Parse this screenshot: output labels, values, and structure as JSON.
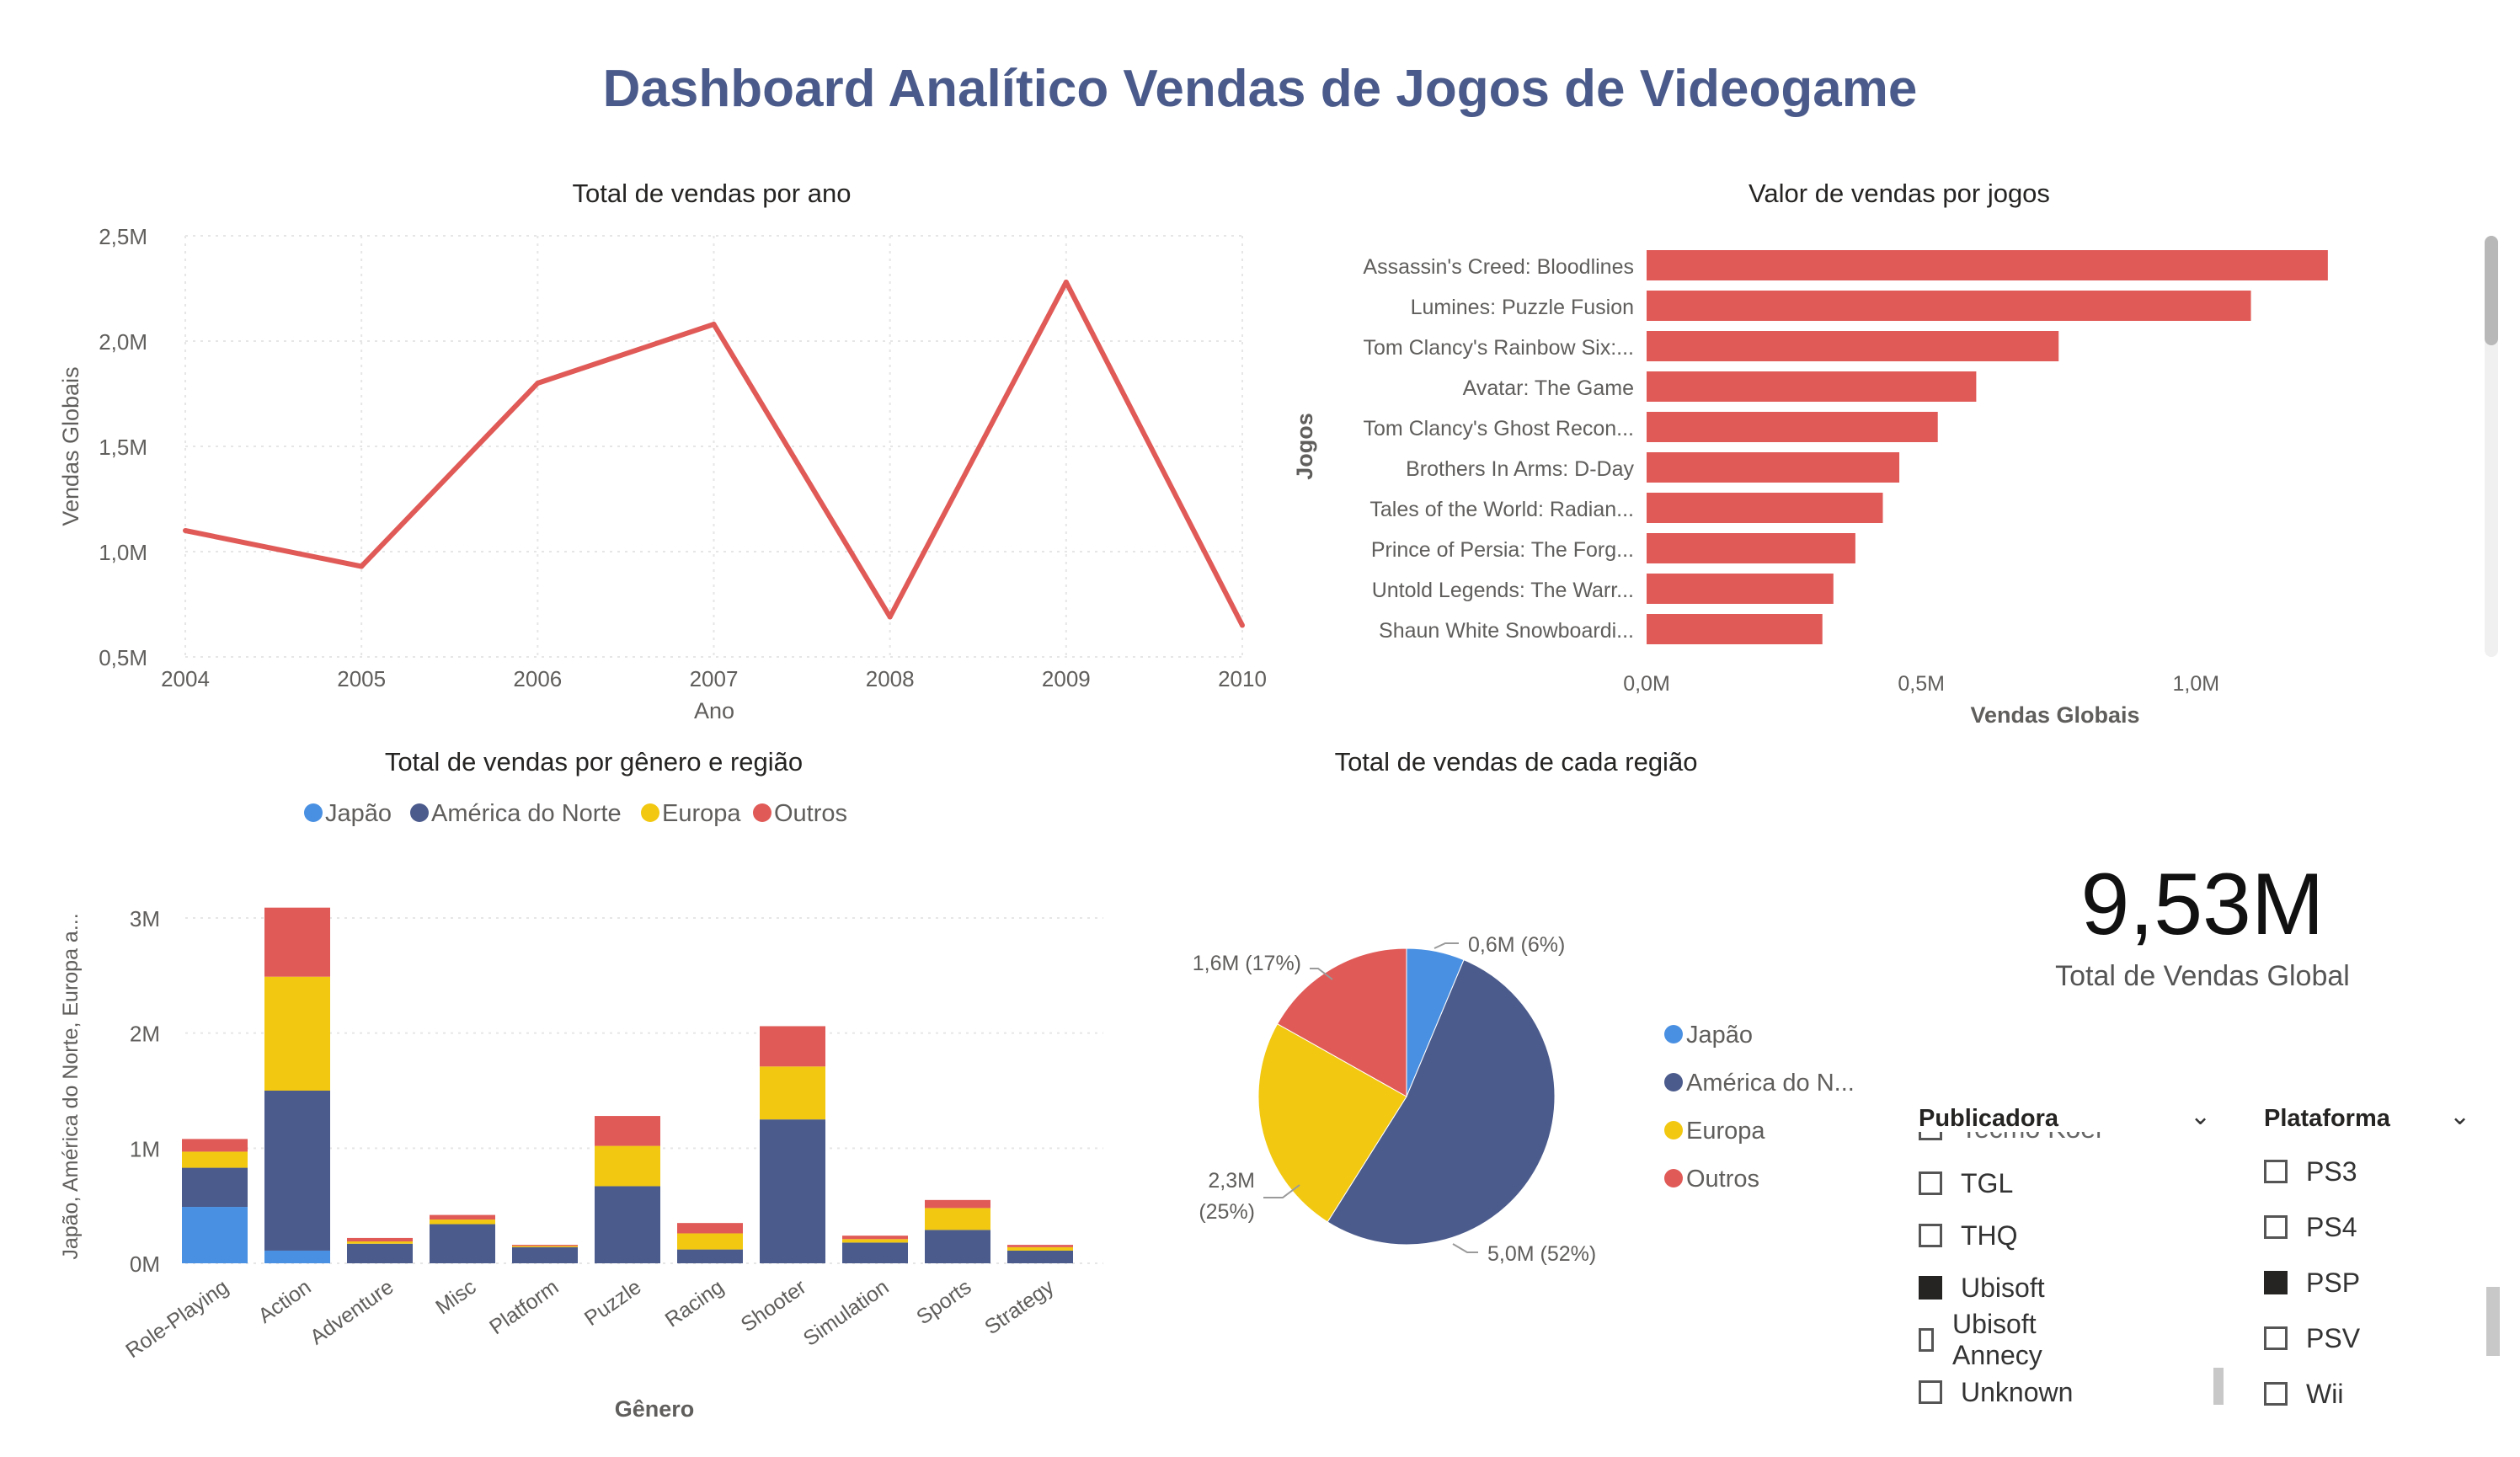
{
  "dashboard": {
    "title": "Dashboard Analítico Vendas de Jogos de Videogame"
  },
  "colors": {
    "red": "#e05a57",
    "navy": "#4b5b8c",
    "blue": "#4a90e2",
    "yellow": "#f2c811"
  },
  "charts": {
    "line": {
      "title": "Total de vendas por ano",
      "xlabel": "Ano",
      "ylabel": "Vendas Globais"
    },
    "bar": {
      "title": "Valor de vendas por jogos",
      "xlabel": "Vendas Globais",
      "ylabel": "Jogos"
    },
    "stacked": {
      "title": "Total de vendas por gênero e região",
      "xlabel": "Gênero",
      "ylabel": "Japão, América do Norte, Europa a..."
    },
    "pie": {
      "title": "Total de vendas de cada região"
    }
  },
  "chart_data": [
    {
      "type": "line",
      "title": "Total de vendas por ano",
      "xlabel": "Ano",
      "ylabel": "Vendas Globais",
      "x": [
        "2004",
        "2005",
        "2006",
        "2007",
        "2008",
        "2009",
        "2010"
      ],
      "values": [
        1.1,
        0.93,
        1.8,
        2.08,
        0.69,
        2.28,
        0.65
      ],
      "yticks": [
        "0,5M",
        "1,0M",
        "1,5M",
        "2,0M",
        "2,5M"
      ],
      "ylim": [
        0.5,
        2.5
      ],
      "color": "#e05a57"
    },
    {
      "type": "bar",
      "orientation": "horizontal",
      "title": "Valor de vendas por jogos",
      "xlabel": "Vendas Globais",
      "ylabel": "Jogos",
      "categories": [
        "Assassin's Creed: Bloodlines",
        "Lumines: Puzzle Fusion",
        "Tom Clancy's Rainbow Six:...",
        "Avatar: The Game",
        "Tom Clancy's Ghost Recon...",
        "Brothers In Arms: D-Day",
        "Tales of the World: Radian...",
        "Prince of Persia: The Forg...",
        "Untold Legends: The Warr...",
        "Shaun White Snowboardi..."
      ],
      "values": [
        1.24,
        1.1,
        0.75,
        0.6,
        0.53,
        0.46,
        0.43,
        0.38,
        0.34,
        0.32
      ],
      "xticks": [
        "0,0M",
        "0,5M",
        "1,0M"
      ],
      "xlim": [
        0,
        1.3
      ],
      "color": "#e05a57"
    },
    {
      "type": "bar",
      "stacked": true,
      "title": "Total de vendas por gênero e região",
      "xlabel": "Gênero",
      "ylabel": "Japão, América do Norte, Europa a...",
      "categories": [
        "Role-Playing",
        "Action",
        "Adventure",
        "Misc",
        "Platform",
        "Puzzle",
        "Racing",
        "Shooter",
        "Simulation",
        "Sports",
        "Strategy"
      ],
      "series": [
        {
          "name": "Japão",
          "color": "#4a90e2",
          "values": [
            0.49,
            0.11,
            0.0,
            0.0,
            0.0,
            0.0,
            0.0,
            0.0,
            0.0,
            0.0,
            0.0
          ]
        },
        {
          "name": "América do Norte",
          "color": "#4b5b8c",
          "values": [
            0.34,
            1.39,
            0.17,
            0.34,
            0.14,
            0.67,
            0.12,
            1.25,
            0.18,
            0.29,
            0.11
          ]
        },
        {
          "name": "Europa",
          "color": "#f2c811",
          "values": [
            0.14,
            0.99,
            0.02,
            0.04,
            0.01,
            0.35,
            0.14,
            0.46,
            0.03,
            0.19,
            0.03
          ]
        },
        {
          "name": "Outros",
          "color": "#e05a57",
          "values": [
            0.11,
            0.6,
            0.03,
            0.04,
            0.01,
            0.26,
            0.09,
            0.35,
            0.03,
            0.07,
            0.02
          ]
        }
      ],
      "yticks": [
        "0M",
        "1M",
        "2M",
        "3M"
      ],
      "ylim": [
        0,
        3.3
      ],
      "legend_position": "top"
    },
    {
      "type": "pie",
      "title": "Total de vendas de cada região",
      "slices": [
        {
          "name": "Japão",
          "value": 0.6,
          "label": "0,6M (6%)",
          "color": "#4a90e2"
        },
        {
          "name": "América do N...",
          "value": 5.0,
          "label": "5,0M (52%)",
          "color": "#4b5b8c"
        },
        {
          "name": "Europa",
          "value": 2.3,
          "label": "2,3M (25%)",
          "color": "#f2c811"
        },
        {
          "name": "Outros",
          "value": 1.6,
          "label": "1,6M (17%)",
          "color": "#e05a57"
        }
      ],
      "legend_position": "right"
    }
  ],
  "kpi": {
    "value": "9,53M",
    "label": "Total de Vendas Global"
  },
  "slicers": {
    "publisher": {
      "title": "Publicadora",
      "partial_item": "Tecmo Koei",
      "items": [
        {
          "label": "TGL",
          "checked": false
        },
        {
          "label": "THQ",
          "checked": false
        },
        {
          "label": "Ubisoft",
          "checked": true
        },
        {
          "label": "Ubisoft Annecy",
          "checked": false
        },
        {
          "label": "Unknown",
          "checked": false
        }
      ]
    },
    "platform": {
      "title": "Plataforma",
      "items": [
        {
          "label": "PS3",
          "checked": false
        },
        {
          "label": "PS4",
          "checked": false
        },
        {
          "label": "PSP",
          "checked": true
        },
        {
          "label": "PSV",
          "checked": false
        },
        {
          "label": "Wii",
          "checked": false
        }
      ]
    }
  }
}
